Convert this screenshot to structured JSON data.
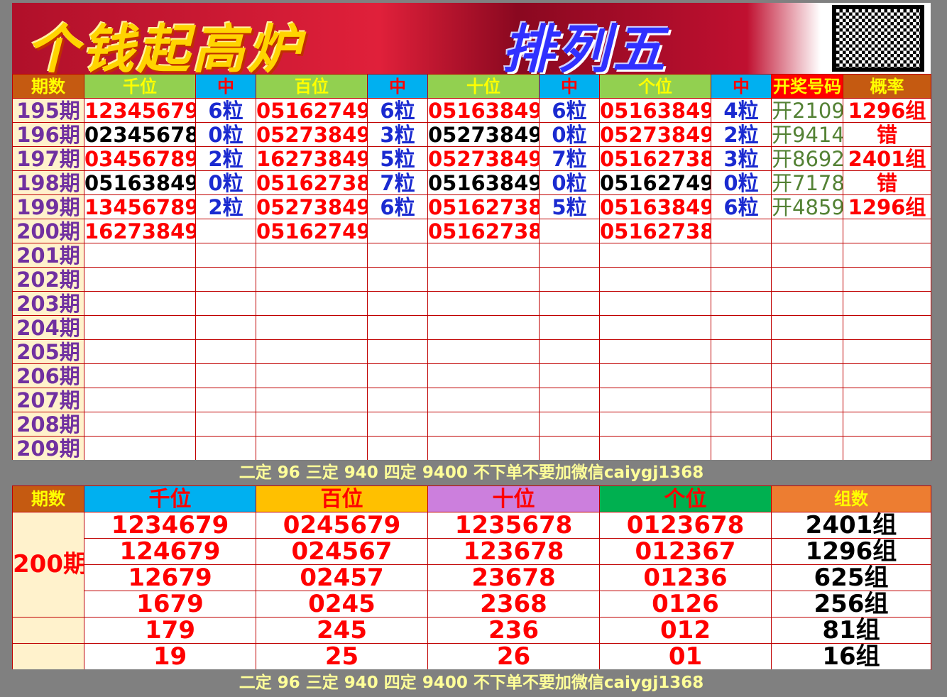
{
  "banner": {
    "title_left": "个钱起高炉",
    "title_right": "排列五",
    "qr_icon": "qr-code-icon"
  },
  "colors": {
    "hit": "#ff0000",
    "miss": "#000000",
    "count": "#1a2ad0",
    "draw": "#548235",
    "period": "#7030a0"
  },
  "top_table": {
    "headers": [
      "期数",
      "千位",
      "中",
      "百位",
      "中",
      "十位",
      "中",
      "个位",
      "中",
      "开奖号码",
      "概率"
    ],
    "header_bg": [
      "#c55a11",
      "#92d050",
      "#00b0f0",
      "#92d050",
      "#00b0f0",
      "#92d050",
      "#00b0f0",
      "#92d050",
      "#00b0f0",
      "#ff0000",
      "#c55a11"
    ],
    "header_fg": [
      "#ffff00",
      "#ffff00",
      "#ff0000",
      "#ffff00",
      "#ff0000",
      "#ffff00",
      "#ff0000",
      "#ffff00",
      "#ff0000",
      "#ffff00",
      "#ffff00"
    ],
    "rows": [
      {
        "period": "195期",
        "cells": [
          [
            "12345679",
            "#ff0000"
          ],
          [
            "6粒"
          ],
          [
            "05162749",
            "#ff0000"
          ],
          [
            "6粒"
          ],
          [
            "05163849",
            "#ff0000"
          ],
          [
            "6粒"
          ],
          [
            "05163849",
            "#ff0000"
          ],
          [
            "4粒"
          ]
        ],
        "draw": "开2109",
        "rate": "1296组"
      },
      {
        "period": "196期",
        "cells": [
          [
            "02345678",
            "#000000"
          ],
          [
            "0粒"
          ],
          [
            "05273849",
            "#ff0000"
          ],
          [
            "3粒"
          ],
          [
            "05273849",
            "#000000"
          ],
          [
            "0粒"
          ],
          [
            "05273849",
            "#ff0000"
          ],
          [
            "2粒"
          ]
        ],
        "draw": "开9414",
        "rate": "错"
      },
      {
        "period": "197期",
        "cells": [
          [
            "03456789",
            "#ff0000"
          ],
          [
            "2粒"
          ],
          [
            "16273849",
            "#ff0000"
          ],
          [
            "5粒"
          ],
          [
            "05273849",
            "#ff0000"
          ],
          [
            "7粒"
          ],
          [
            "05162738",
            "#ff0000"
          ],
          [
            "3粒"
          ]
        ],
        "draw": "开8692",
        "rate": "2401组"
      },
      {
        "period": "198期",
        "cells": [
          [
            "05163849",
            "#000000"
          ],
          [
            "0粒"
          ],
          [
            "05162738",
            "#ff0000"
          ],
          [
            "7粒"
          ],
          [
            "05163849",
            "#000000"
          ],
          [
            "0粒"
          ],
          [
            "05162749",
            "#000000"
          ],
          [
            "0粒"
          ]
        ],
        "draw": "开7178",
        "rate": "错"
      },
      {
        "period": "199期",
        "cells": [
          [
            "13456789",
            "#ff0000"
          ],
          [
            "2粒"
          ],
          [
            "05273849",
            "#ff0000"
          ],
          [
            "6粒"
          ],
          [
            "05162738",
            "#ff0000"
          ],
          [
            "5粒"
          ],
          [
            "05163849",
            "#ff0000"
          ],
          [
            "6粒"
          ]
        ],
        "draw": "开4859",
        "rate": "1296组"
      },
      {
        "period": "200期",
        "cells": [
          [
            "16273849",
            "#ff0000"
          ],
          [
            ""
          ],
          [
            "05162749",
            "#ff0000"
          ],
          [
            ""
          ],
          [
            "05162738",
            "#ff0000"
          ],
          [
            ""
          ],
          [
            "05162738",
            "#ff0000"
          ],
          [
            ""
          ]
        ],
        "draw": "",
        "rate": ""
      },
      {
        "period": "201期"
      },
      {
        "period": "202期"
      },
      {
        "period": "203期"
      },
      {
        "period": "204期"
      },
      {
        "period": "205期"
      },
      {
        "period": "206期"
      },
      {
        "period": "207期"
      },
      {
        "period": "208期"
      },
      {
        "period": "209期"
      }
    ]
  },
  "note": "二定 96 三定 940 四定 9400 不下单不要加微信caiygj1368",
  "bottom_table": {
    "headers": [
      "期数",
      "千位",
      "百位",
      "十位",
      "个位",
      "组数"
    ],
    "header_bg": [
      "#c55a11",
      "#00b0f0",
      "#ffc000",
      "#cc7fdd",
      "#00b050",
      "#ed7d31"
    ],
    "header_fg": [
      "#ffff00",
      "#ff0000",
      "#ff0000",
      "#ff0000",
      "#ff0000",
      "#ffff00"
    ],
    "period": "200期",
    "rows": [
      [
        "1234679",
        "0245679",
        "1235678",
        "0123678",
        "2401组"
      ],
      [
        "124679",
        "024567",
        "123678",
        "012367",
        "1296组"
      ],
      [
        "12679",
        "02457",
        "23678",
        "01236",
        "625组"
      ],
      [
        "1679",
        "0245",
        "2368",
        "0126",
        "256组"
      ],
      [
        "179",
        "245",
        "236",
        "012",
        "81组"
      ],
      [
        "19",
        "25",
        "26",
        "01",
        "16组"
      ]
    ]
  }
}
